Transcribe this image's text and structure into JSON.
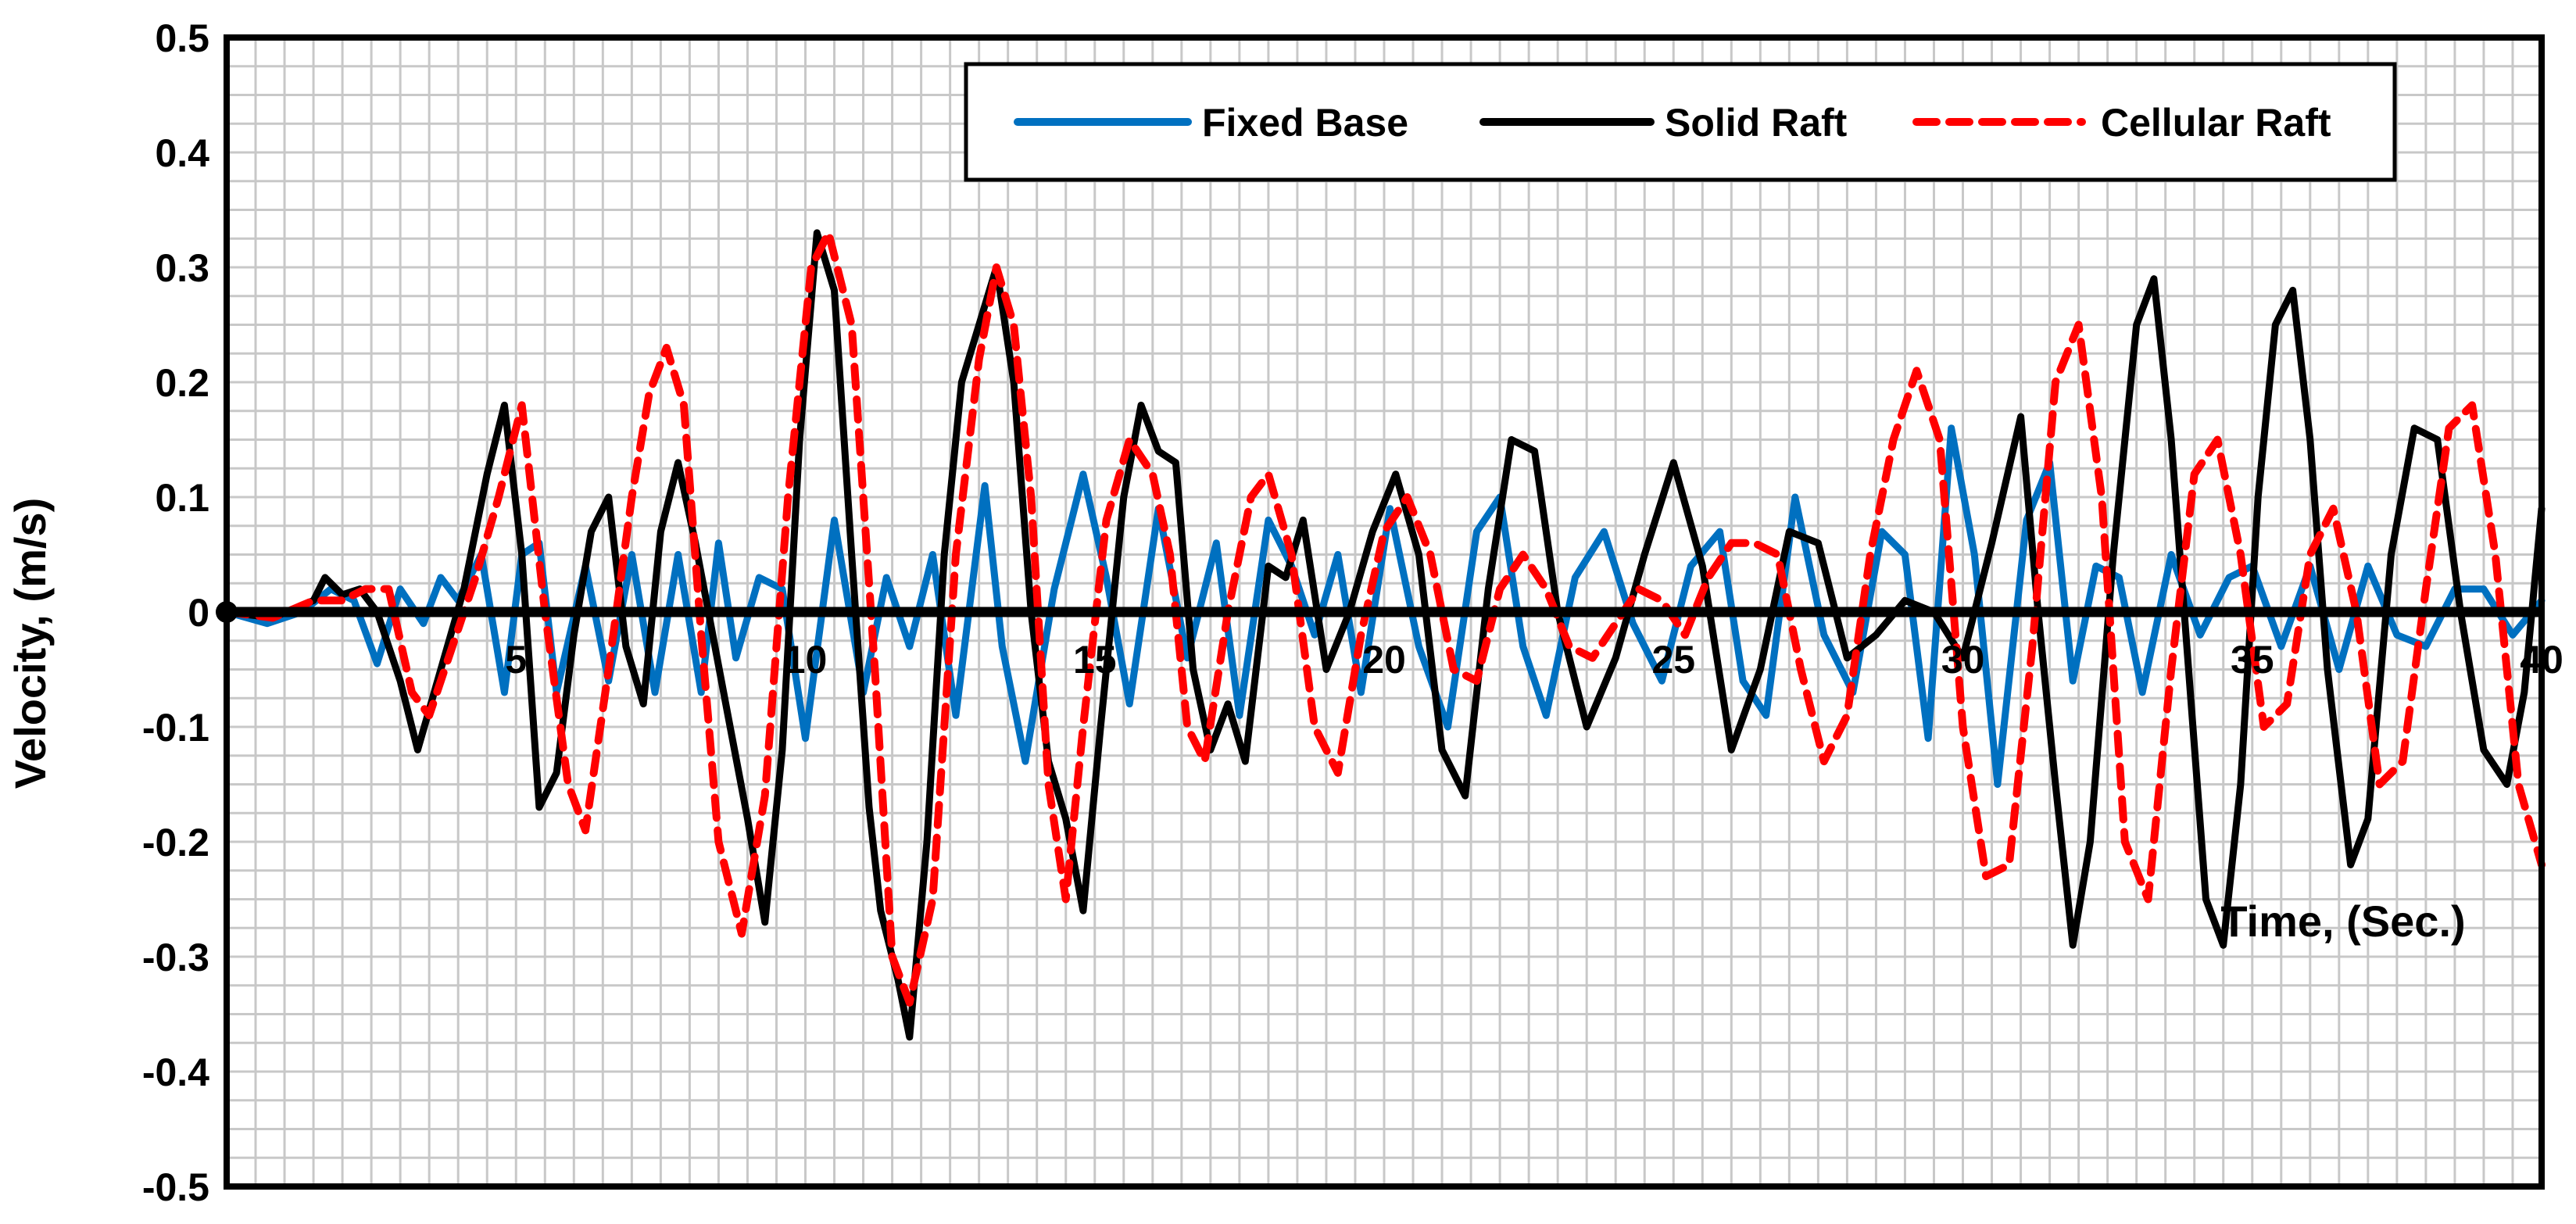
{
  "chart_data": {
    "type": "line",
    "title": "",
    "xlabel": "Time, (Sec.)",
    "ylabel": "Velocity, (m/s)",
    "xlim": [
      0,
      40
    ],
    "ylim": [
      -0.5,
      0.5
    ],
    "x_ticks": [
      "5",
      "10",
      "15",
      "20",
      "25",
      "30",
      "35",
      "40"
    ],
    "y_ticks": [
      "0.5",
      "0.4",
      "0.3",
      "0.2",
      "0.1",
      "0",
      "-0.1",
      "-0.2",
      "-0.3",
      "-0.4",
      "-0.5"
    ],
    "grid": true,
    "legend_position": "top-right",
    "series": [
      {
        "name": "Fixed Base",
        "color": "#0070C0",
        "dash": "solid",
        "points": [
          [
            0,
            0
          ],
          [
            0.7,
            -0.01
          ],
          [
            1.3,
            0
          ],
          [
            1.8,
            0.02
          ],
          [
            2.2,
            0.01
          ],
          [
            2.6,
            -0.045
          ],
          [
            3.0,
            0.02
          ],
          [
            3.4,
            -0.01
          ],
          [
            3.7,
            0.03
          ],
          [
            4.0,
            0.01
          ],
          [
            4.4,
            0.05
          ],
          [
            4.8,
            -0.07
          ],
          [
            5.1,
            0.05
          ],
          [
            5.4,
            0.06
          ],
          [
            5.7,
            -0.07
          ],
          [
            6.2,
            0.04
          ],
          [
            6.6,
            -0.06
          ],
          [
            7.0,
            0.05
          ],
          [
            7.4,
            -0.07
          ],
          [
            7.8,
            0.05
          ],
          [
            8.2,
            -0.07
          ],
          [
            8.5,
            0.06
          ],
          [
            8.8,
            -0.04
          ],
          [
            9.2,
            0.03
          ],
          [
            9.6,
            0.02
          ],
          [
            10.0,
            -0.11
          ],
          [
            10.5,
            0.08
          ],
          [
            11.0,
            -0.07
          ],
          [
            11.4,
            0.03
          ],
          [
            11.8,
            -0.03
          ],
          [
            12.2,
            0.05
          ],
          [
            12.6,
            -0.09
          ],
          [
            13.1,
            0.11
          ],
          [
            13.4,
            -0.03
          ],
          [
            13.8,
            -0.13
          ],
          [
            14.3,
            0.02
          ],
          [
            14.8,
            0.12
          ],
          [
            15.2,
            0.03
          ],
          [
            15.6,
            -0.08
          ],
          [
            16.1,
            0.09
          ],
          [
            16.6,
            -0.04
          ],
          [
            17.1,
            0.06
          ],
          [
            17.5,
            -0.09
          ],
          [
            18.0,
            0.08
          ],
          [
            18.4,
            0.04
          ],
          [
            18.8,
            -0.02
          ],
          [
            19.2,
            0.05
          ],
          [
            19.6,
            -0.07
          ],
          [
            20.1,
            0.09
          ],
          [
            20.6,
            -0.03
          ],
          [
            21.1,
            -0.1
          ],
          [
            21.6,
            0.07
          ],
          [
            22.0,
            0.1
          ],
          [
            22.4,
            -0.03
          ],
          [
            22.8,
            -0.09
          ],
          [
            23.3,
            0.03
          ],
          [
            23.8,
            0.07
          ],
          [
            24.3,
            -0.01
          ],
          [
            24.8,
            -0.06
          ],
          [
            25.3,
            0.04
          ],
          [
            25.8,
            0.07
          ],
          [
            26.2,
            -0.06
          ],
          [
            26.6,
            -0.09
          ],
          [
            27.1,
            0.1
          ],
          [
            27.6,
            -0.02
          ],
          [
            28.1,
            -0.07
          ],
          [
            28.6,
            0.07
          ],
          [
            29.0,
            0.05
          ],
          [
            29.4,
            -0.11
          ],
          [
            29.8,
            0.16
          ],
          [
            30.2,
            0.05
          ],
          [
            30.6,
            -0.15
          ],
          [
            31.1,
            0.08
          ],
          [
            31.5,
            0.13
          ],
          [
            31.9,
            -0.06
          ],
          [
            32.3,
            0.04
          ],
          [
            32.7,
            0.03
          ],
          [
            33.1,
            -0.07
          ],
          [
            33.6,
            0.05
          ],
          [
            34.1,
            -0.02
          ],
          [
            34.6,
            0.03
          ],
          [
            35.0,
            0.04
          ],
          [
            35.5,
            -0.03
          ],
          [
            36.0,
            0.04
          ],
          [
            36.5,
            -0.05
          ],
          [
            37.0,
            0.04
          ],
          [
            37.5,
            -0.02
          ],
          [
            38.0,
            -0.03
          ],
          [
            38.5,
            0.02
          ],
          [
            39.0,
            0.02
          ],
          [
            39.5,
            -0.02
          ],
          [
            40.0,
            0.01
          ]
        ]
      },
      {
        "name": "Solid Raft",
        "color": "#000000",
        "dash": "solid",
        "points": [
          [
            0,
            0
          ],
          [
            0.8,
            -0.005
          ],
          [
            1.5,
            0.01
          ],
          [
            1.7,
            0.03
          ],
          [
            2.0,
            0.015
          ],
          [
            2.3,
            0.02
          ],
          [
            2.6,
            0
          ],
          [
            3.0,
            -0.06
          ],
          [
            3.3,
            -0.12
          ],
          [
            3.7,
            -0.05
          ],
          [
            4.1,
            0.02
          ],
          [
            4.5,
            0.12
          ],
          [
            4.8,
            0.18
          ],
          [
            5.1,
            0.05
          ],
          [
            5.4,
            -0.17
          ],
          [
            5.7,
            -0.14
          ],
          [
            6.0,
            -0.02
          ],
          [
            6.3,
            0.07
          ],
          [
            6.6,
            0.1
          ],
          [
            6.9,
            -0.03
          ],
          [
            7.2,
            -0.08
          ],
          [
            7.5,
            0.07
          ],
          [
            7.8,
            0.13
          ],
          [
            8.1,
            0.06
          ],
          [
            8.4,
            -0.02
          ],
          [
            8.7,
            -0.1
          ],
          [
            9.0,
            -0.18
          ],
          [
            9.3,
            -0.27
          ],
          [
            9.6,
            -0.12
          ],
          [
            9.9,
            0.15
          ],
          [
            10.2,
            0.33
          ],
          [
            10.5,
            0.28
          ],
          [
            10.8,
            0.05
          ],
          [
            11.1,
            -0.17
          ],
          [
            11.3,
            -0.26
          ],
          [
            11.6,
            -0.32
          ],
          [
            11.8,
            -0.37
          ],
          [
            12.1,
            -0.2
          ],
          [
            12.4,
            0.05
          ],
          [
            12.7,
            0.2
          ],
          [
            13.0,
            0.25
          ],
          [
            13.3,
            0.3
          ],
          [
            13.6,
            0.2
          ],
          [
            13.9,
            0.0
          ],
          [
            14.2,
            -0.13
          ],
          [
            14.5,
            -0.18
          ],
          [
            14.8,
            -0.26
          ],
          [
            15.1,
            -0.1
          ],
          [
            15.5,
            0.1
          ],
          [
            15.8,
            0.18
          ],
          [
            16.1,
            0.14
          ],
          [
            16.4,
            0.13
          ],
          [
            16.7,
            -0.05
          ],
          [
            17.0,
            -0.12
          ],
          [
            17.3,
            -0.08
          ],
          [
            17.6,
            -0.13
          ],
          [
            18.0,
            0.04
          ],
          [
            18.3,
            0.03
          ],
          [
            18.6,
            0.08
          ],
          [
            19.0,
            -0.05
          ],
          [
            19.4,
            0.0
          ],
          [
            19.8,
            0.07
          ],
          [
            20.2,
            0.12
          ],
          [
            20.6,
            0.05
          ],
          [
            21.0,
            -0.12
          ],
          [
            21.4,
            -0.16
          ],
          [
            21.8,
            0.02
          ],
          [
            22.2,
            0.15
          ],
          [
            22.6,
            0.14
          ],
          [
            23.0,
            0.0
          ],
          [
            23.5,
            -0.1
          ],
          [
            24.0,
            -0.04
          ],
          [
            24.5,
            0.05
          ],
          [
            25.0,
            0.13
          ],
          [
            25.5,
            0.04
          ],
          [
            26.0,
            -0.12
          ],
          [
            26.5,
            -0.05
          ],
          [
            27.0,
            0.07
          ],
          [
            27.5,
            0.06
          ],
          [
            28.0,
            -0.04
          ],
          [
            28.5,
            -0.02
          ],
          [
            29.0,
            0.01
          ],
          [
            29.5,
            0.0
          ],
          [
            30.0,
            -0.04
          ],
          [
            30.5,
            0.06
          ],
          [
            31.0,
            0.17
          ],
          [
            31.3,
            0.0
          ],
          [
            31.6,
            -0.15
          ],
          [
            31.9,
            -0.29
          ],
          [
            32.2,
            -0.2
          ],
          [
            32.6,
            0.05
          ],
          [
            33.0,
            0.25
          ],
          [
            33.3,
            0.29
          ],
          [
            33.6,
            0.15
          ],
          [
            33.9,
            -0.05
          ],
          [
            34.2,
            -0.25
          ],
          [
            34.5,
            -0.29
          ],
          [
            34.8,
            -0.15
          ],
          [
            35.1,
            0.1
          ],
          [
            35.4,
            0.25
          ],
          [
            35.7,
            0.28
          ],
          [
            36.0,
            0.15
          ],
          [
            36.3,
            -0.05
          ],
          [
            36.7,
            -0.22
          ],
          [
            37.0,
            -0.18
          ],
          [
            37.4,
            0.05
          ],
          [
            37.8,
            0.16
          ],
          [
            38.2,
            0.15
          ],
          [
            38.6,
            0.0
          ],
          [
            39.0,
            -0.12
          ],
          [
            39.4,
            -0.15
          ],
          [
            39.7,
            -0.07
          ],
          [
            40.0,
            0.09
          ]
        ]
      },
      {
        "name": "Cellular Raft",
        "color": "#FF0000",
        "dash": "dashed",
        "points": [
          [
            0,
            0
          ],
          [
            0.8,
            -0.005
          ],
          [
            1.5,
            0.01
          ],
          [
            2.0,
            0.01
          ],
          [
            2.4,
            0.02
          ],
          [
            2.8,
            0.02
          ],
          [
            3.2,
            -0.07
          ],
          [
            3.5,
            -0.09
          ],
          [
            3.9,
            -0.03
          ],
          [
            4.3,
            0.03
          ],
          [
            4.7,
            0.1
          ],
          [
            5.1,
            0.18
          ],
          [
            5.5,
            0.0
          ],
          [
            5.9,
            -0.15
          ],
          [
            6.2,
            -0.19
          ],
          [
            6.6,
            -0.05
          ],
          [
            7.0,
            0.1
          ],
          [
            7.3,
            0.19
          ],
          [
            7.6,
            0.23
          ],
          [
            7.9,
            0.18
          ],
          [
            8.2,
            -0.02
          ],
          [
            8.5,
            -0.2
          ],
          [
            8.9,
            -0.28
          ],
          [
            9.3,
            -0.16
          ],
          [
            9.7,
            0.1
          ],
          [
            10.1,
            0.3
          ],
          [
            10.4,
            0.33
          ],
          [
            10.8,
            0.25
          ],
          [
            11.2,
            -0.05
          ],
          [
            11.5,
            -0.3
          ],
          [
            11.8,
            -0.34
          ],
          [
            12.2,
            -0.25
          ],
          [
            12.6,
            0.05
          ],
          [
            13.0,
            0.22
          ],
          [
            13.3,
            0.3
          ],
          [
            13.6,
            0.25
          ],
          [
            13.9,
            0.1
          ],
          [
            14.2,
            -0.15
          ],
          [
            14.5,
            -0.25
          ],
          [
            14.8,
            -0.1
          ],
          [
            15.2,
            0.08
          ],
          [
            15.6,
            0.15
          ],
          [
            16.0,
            0.12
          ],
          [
            16.3,
            0.05
          ],
          [
            16.6,
            -0.1
          ],
          [
            16.9,
            -0.13
          ],
          [
            17.3,
            0.0
          ],
          [
            17.7,
            0.1
          ],
          [
            18.0,
            0.12
          ],
          [
            18.4,
            0.05
          ],
          [
            18.8,
            -0.1
          ],
          [
            19.2,
            -0.14
          ],
          [
            19.6,
            -0.02
          ],
          [
            20.0,
            0.07
          ],
          [
            20.4,
            0.1
          ],
          [
            20.8,
            0.05
          ],
          [
            21.2,
            -0.05
          ],
          [
            21.6,
            -0.06
          ],
          [
            22.0,
            0.02
          ],
          [
            22.4,
            0.05
          ],
          [
            22.8,
            0.02
          ],
          [
            23.2,
            -0.03
          ],
          [
            23.6,
            -0.04
          ],
          [
            24.0,
            -0.01
          ],
          [
            24.4,
            0.02
          ],
          [
            24.8,
            0.01
          ],
          [
            25.2,
            -0.02
          ],
          [
            25.6,
            0.03
          ],
          [
            26.0,
            0.06
          ],
          [
            26.4,
            0.06
          ],
          [
            26.8,
            0.05
          ],
          [
            27.2,
            -0.05
          ],
          [
            27.6,
            -0.13
          ],
          [
            28.0,
            -0.09
          ],
          [
            28.4,
            0.05
          ],
          [
            28.8,
            0.15
          ],
          [
            29.2,
            0.21
          ],
          [
            29.6,
            0.15
          ],
          [
            30.0,
            -0.1
          ],
          [
            30.4,
            -0.23
          ],
          [
            30.8,
            -0.22
          ],
          [
            31.2,
            -0.03
          ],
          [
            31.6,
            0.2
          ],
          [
            32.0,
            0.25
          ],
          [
            32.4,
            0.1
          ],
          [
            32.8,
            -0.2
          ],
          [
            33.2,
            -0.25
          ],
          [
            33.6,
            -0.05
          ],
          [
            34.0,
            0.12
          ],
          [
            34.4,
            0.15
          ],
          [
            34.8,
            0.05
          ],
          [
            35.2,
            -0.1
          ],
          [
            35.6,
            -0.08
          ],
          [
            36.0,
            0.05
          ],
          [
            36.4,
            0.09
          ],
          [
            36.8,
            0.0
          ],
          [
            37.2,
            -0.15
          ],
          [
            37.6,
            -0.13
          ],
          [
            38.0,
            0.02
          ],
          [
            38.4,
            0.16
          ],
          [
            38.8,
            0.18
          ],
          [
            39.2,
            0.05
          ],
          [
            39.6,
            -0.15
          ],
          [
            40.0,
            -0.22
          ]
        ]
      }
    ]
  }
}
